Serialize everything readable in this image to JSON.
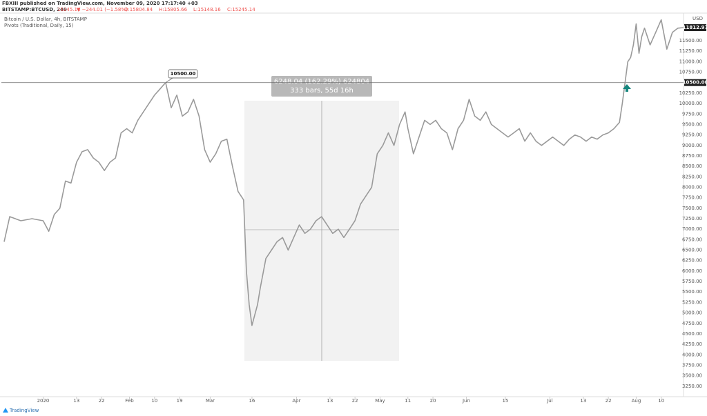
{
  "header": {
    "publisher": "FBXIII published on TradingView.com, November 09, 2020 17:17:40 +03",
    "symbol": "BITSTAMP:BTCUSD, 240",
    "last": "15245.14",
    "change": "▼ −244.01 (−1.58%)",
    "open": "O:15804.84",
    "high": "H:15805.66",
    "low": "L:15148.16",
    "close": "C:15245.14"
  },
  "footer": {
    "brand": "TradingView"
  },
  "chart_data": {
    "type": "line",
    "indicator": "Pivots (Traditional, Daily, 15)",
    "currency": "USD",
    "series": [
      {
        "name": "Bitcoin / U.S. Dollar, 4h, BITSTAMP",
        "color": "#9a9a9a",
        "x": [
          -14,
          -12,
          -8,
          -4,
          0,
          2,
          4,
          6,
          8,
          10,
          12,
          14,
          16,
          18,
          20,
          22,
          24,
          26,
          28,
          30,
          32,
          34,
          36,
          38,
          40,
          42,
          44,
          46,
          48,
          50,
          52,
          54,
          56,
          58,
          60,
          62,
          64,
          66,
          68,
          70,
          72,
          73,
          74,
          75,
          77,
          78,
          80,
          82,
          84,
          86,
          88,
          90,
          92,
          94,
          96,
          98,
          100,
          102,
          104,
          106,
          108,
          110,
          112,
          114,
          116,
          118,
          120,
          122,
          124,
          126,
          128,
          130,
          131,
          133,
          135,
          137,
          139,
          141,
          143,
          145,
          147,
          149,
          151,
          153,
          155,
          157,
          159,
          161,
          163,
          165,
          167,
          169,
          171,
          173,
          175,
          177,
          179,
          181,
          183,
          185,
          187,
          189,
          191,
          193,
          195,
          197,
          199,
          201,
          203,
          205,
          207,
          208,
          209,
          210,
          211,
          212,
          213,
          214,
          215,
          216,
          218,
          220,
          222,
          224,
          226,
          228,
          230
        ],
        "values": [
          6700,
          7300,
          7200,
          7250,
          7200,
          6950,
          7350,
          7500,
          8150,
          8100,
          8600,
          8850,
          8900,
          8700,
          8600,
          8400,
          8600,
          8700,
          9300,
          9400,
          9300,
          9600,
          9800,
          10000,
          10200,
          10350,
          10500,
          9900,
          10200,
          9700,
          9800,
          10100,
          9700,
          8900,
          8600,
          8800,
          9100,
          9150,
          8500,
          7900,
          7700,
          6000,
          5200,
          4700,
          5200,
          5600,
          6300,
          6500,
          6700,
          6800,
          6500,
          6800,
          7100,
          6900,
          7000,
          7200,
          7300,
          7100,
          6900,
          7000,
          6800,
          7000,
          7200,
          7600,
          7800,
          8000,
          8800,
          9000,
          9300,
          9000,
          9500,
          9800,
          9400,
          8800,
          9200,
          9600,
          9500,
          9600,
          9400,
          9300,
          8900,
          9400,
          9600,
          10100,
          9700,
          9600,
          9800,
          9500,
          9400,
          9300,
          9200,
          9300,
          9400,
          9100,
          9300,
          9100,
          9000,
          9100,
          9200,
          9100,
          9000,
          9150,
          9250,
          9200,
          9100,
          9200,
          9150,
          9250,
          9300,
          9400,
          9550,
          10000,
          10500,
          11000,
          11100,
          11400,
          11900,
          11200,
          11600,
          11800,
          11400,
          11700,
          12000,
          11300,
          11700,
          11800,
          11812.97
        ]
      }
    ],
    "xlim": [
      -15,
      230
    ],
    "xticks": [
      {
        "value": 0,
        "label": "2020"
      },
      {
        "value": 12,
        "label": "13"
      },
      {
        "value": 21,
        "label": "22"
      },
      {
        "value": 31,
        "label": "Feb"
      },
      {
        "value": 40,
        "label": "10"
      },
      {
        "value": 49,
        "label": "19"
      },
      {
        "value": 60,
        "label": "Mar"
      },
      {
        "value": 75,
        "label": "16"
      },
      {
        "value": 91,
        "label": "Apr"
      },
      {
        "value": 103,
        "label": "13"
      },
      {
        "value": 112,
        "label": "22"
      },
      {
        "value": 121,
        "label": "May"
      },
      {
        "value": 131,
        "label": "11"
      },
      {
        "value": 140,
        "label": "20"
      },
      {
        "value": 152,
        "label": "Jun"
      },
      {
        "value": 166,
        "label": "15"
      },
      {
        "value": 182,
        "label": "Jul"
      },
      {
        "value": 194,
        "label": "13"
      },
      {
        "value": 203,
        "label": "22"
      },
      {
        "value": 213,
        "label": "Aug"
      },
      {
        "value": 222,
        "label": "10"
      }
    ],
    "ylim": [
      3000,
      12110
    ],
    "yticks": [
      {
        "value": 3250,
        "label": "3250.00"
      },
      {
        "value": 3500,
        "label": "3500.00"
      },
      {
        "value": 3750,
        "label": "3750.00"
      },
      {
        "value": 4000,
        "label": "4000.00"
      },
      {
        "value": 4250,
        "label": "4250.00"
      },
      {
        "value": 4500,
        "label": "4500.00"
      },
      {
        "value": 4750,
        "label": "4750.00"
      },
      {
        "value": 5000,
        "label": "5000.00"
      },
      {
        "value": 5250,
        "label": "5250.00"
      },
      {
        "value": 5500,
        "label": "5500.00"
      },
      {
        "value": 5750,
        "label": "5750.00"
      },
      {
        "value": 6000,
        "label": "6000.00"
      },
      {
        "value": 6250,
        "label": "6250.00"
      },
      {
        "value": 6500,
        "label": "6500.00"
      },
      {
        "value": 6750,
        "label": "6750.00"
      },
      {
        "value": 7000,
        "label": "7000.00"
      },
      {
        "value": 7250,
        "label": "7250.00"
      },
      {
        "value": 7500,
        "label": "7500.00"
      },
      {
        "value": 7750,
        "label": "7750.00"
      },
      {
        "value": 8000,
        "label": "8000.00"
      },
      {
        "value": 8250,
        "label": "8250.00"
      },
      {
        "value": 8500,
        "label": "8500.00"
      },
      {
        "value": 8750,
        "label": "8750.00"
      },
      {
        "value": 9000,
        "label": "9000.00"
      },
      {
        "value": 9250,
        "label": "9250.00"
      },
      {
        "value": 9500,
        "label": "9500.00"
      },
      {
        "value": 9750,
        "label": "9750.00"
      },
      {
        "value": 10000,
        "label": "10000.00"
      },
      {
        "value": 10250,
        "label": "10250.00"
      },
      {
        "value": 10750,
        "label": "10750.00"
      },
      {
        "value": 11000,
        "label": "11000.00"
      },
      {
        "value": 11250,
        "label": "11250.00"
      },
      {
        "value": 11500,
        "label": "11500.00"
      }
    ],
    "horizontal_line": {
      "value": 10500,
      "label": "10500.00"
    },
    "callout": {
      "value": 10500,
      "label": "10500.00"
    },
    "last_price": {
      "value": 11812.97,
      "label": "11812.97"
    },
    "measure": {
      "line1": "6248.04 (162.29%) 624804",
      "line2": "333 bars, 55d 16h"
    }
  }
}
